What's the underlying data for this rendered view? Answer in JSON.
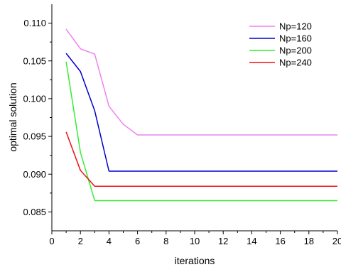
{
  "chart_data": {
    "type": "line",
    "xlabel": "iterations",
    "ylabel": "optimal solution",
    "xlim": [
      0,
      20
    ],
    "ylim": [
      0.0825,
      0.1125
    ],
    "x_ticks": [
      "0",
      "2",
      "4",
      "6",
      "8",
      "10",
      "12",
      "14",
      "16",
      "18",
      "20"
    ],
    "y_ticks": [
      "0.085",
      "0.090",
      "0.095",
      "0.100",
      "0.105",
      "0.110"
    ],
    "grid": false,
    "legend_position": "top-right",
    "series": [
      {
        "name": "Np=120",
        "color": "#ee82ee",
        "x": [
          1,
          2,
          3,
          4,
          5,
          6,
          7,
          8,
          9,
          10,
          11,
          12,
          13,
          14,
          15,
          16,
          17,
          18,
          19,
          20
        ],
        "y": [
          0.1092,
          0.1066,
          0.1059,
          0.099,
          0.0966,
          0.0952,
          0.0952,
          0.0952,
          0.0952,
          0.0952,
          0.0952,
          0.0952,
          0.0952,
          0.0952,
          0.0952,
          0.0952,
          0.0952,
          0.0952,
          0.0952,
          0.0952
        ]
      },
      {
        "name": "Np=160",
        "color": "#0000cc",
        "x": [
          1,
          2,
          3,
          4,
          5,
          6,
          7,
          8,
          9,
          10,
          11,
          12,
          13,
          14,
          15,
          16,
          17,
          18,
          19,
          20
        ],
        "y": [
          0.106,
          0.1036,
          0.0984,
          0.0904,
          0.0904,
          0.0904,
          0.0904,
          0.0904,
          0.0904,
          0.0904,
          0.0904,
          0.0904,
          0.0904,
          0.0904,
          0.0904,
          0.0904,
          0.0904,
          0.0904,
          0.0904,
          0.0904
        ]
      },
      {
        "name": "Np=200",
        "color": "#33ee33",
        "x": [
          1,
          2,
          3,
          4,
          5,
          6,
          7,
          8,
          9,
          10,
          11,
          12,
          13,
          14,
          15,
          16,
          17,
          18,
          19,
          20
        ],
        "y": [
          0.1049,
          0.0929,
          0.0865,
          0.0865,
          0.0865,
          0.0865,
          0.0865,
          0.0865,
          0.0865,
          0.0865,
          0.0865,
          0.0865,
          0.0865,
          0.0865,
          0.0865,
          0.0865,
          0.0865,
          0.0865,
          0.0865,
          0.0865
        ]
      },
      {
        "name": "Np=240",
        "color": "#ee1111",
        "x": [
          1,
          2,
          3,
          4,
          5,
          6,
          7,
          8,
          9,
          10,
          11,
          12,
          13,
          14,
          15,
          16,
          17,
          18,
          19,
          20
        ],
        "y": [
          0.0956,
          0.0905,
          0.0884,
          0.0884,
          0.0884,
          0.0884,
          0.0884,
          0.0884,
          0.0884,
          0.0884,
          0.0884,
          0.0884,
          0.0884,
          0.0884,
          0.0884,
          0.0884,
          0.0884,
          0.0884,
          0.0884,
          0.0884
        ]
      }
    ]
  }
}
